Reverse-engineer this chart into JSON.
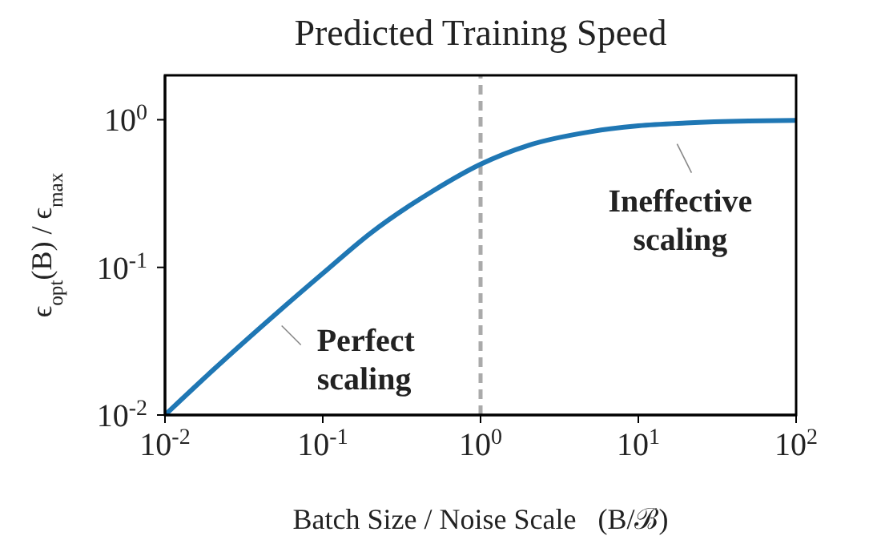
{
  "chart_data": {
    "type": "line",
    "title": "Predicted Training Speed",
    "xlabel": "Batch Size / Noise Scale   (B/ℬ)",
    "ylabel": "ϵ$_{opt}$(B) / ϵ$_{max}$",
    "x": [
      0.01,
      0.02,
      0.05,
      0.1,
      0.2,
      0.5,
      1,
      2,
      5,
      10,
      20,
      50,
      100
    ],
    "series": [
      {
        "color": "#1f77b4",
        "values": [
          0.01,
          0.02,
          0.048,
          0.091,
          0.17,
          0.33,
          0.5,
          0.67,
          0.83,
          0.91,
          0.95,
          0.98,
          0.99
        ]
      }
    ],
    "log": "xy",
    "xlim": [
      0.01,
      100
    ],
    "ylim": [
      0.01,
      2
    ],
    "xticks": [
      {
        "value": 0.01,
        "label": "10$^{-2}$"
      },
      {
        "value": 0.1,
        "label": "10$^{-1}$"
      },
      {
        "value": 1,
        "label": "10$^{0}$"
      },
      {
        "value": 10,
        "label": "10$^{1}$"
      },
      {
        "value": 100,
        "label": "10$^{2}$"
      }
    ],
    "yticks": [
      {
        "value": 0.01,
        "label": "10$^{-2}$"
      },
      {
        "value": 0.1,
        "label": "10$^{-1}$"
      },
      {
        "value": 1,
        "label": "10$^{0}$"
      }
    ],
    "ref_lines": [
      {
        "axis": "x",
        "value": 1,
        "color": "#aaaaaa",
        "line_style": "dashed"
      }
    ],
    "annotations": [
      {
        "text": "Perfect scaling",
        "x": 0.05,
        "y": 0.048
      },
      {
        "text": "Ineffective scaling",
        "x": 25,
        "y": 0.95
      }
    ],
    "grid": false,
    "legend": false,
    "marker": "none",
    "line_style": "solid"
  }
}
